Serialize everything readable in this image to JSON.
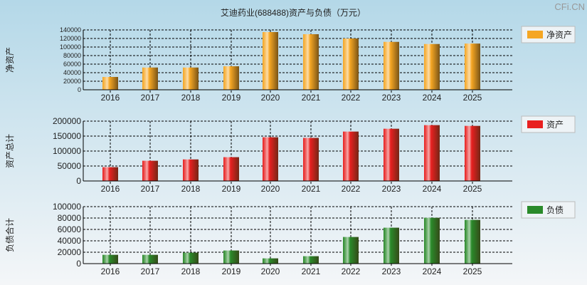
{
  "title": "艾迪药业(688488)资产与负债（万元）",
  "watermark": "CFi.CN",
  "chart_data": [
    {
      "type": "bar",
      "ylabel": "净资产",
      "legend": "净资产",
      "color": "#f5a623",
      "categories": [
        "2016",
        "2017",
        "2018",
        "2019",
        "2020",
        "2021",
        "2022",
        "2023",
        "2024",
        "2025"
      ],
      "values": [
        30000,
        52000,
        52000,
        55000,
        135000,
        130000,
        120000,
        112000,
        107000,
        108000
      ],
      "ylim": [
        0,
        140000
      ],
      "yticks": [
        0,
        20000,
        40000,
        60000,
        80000,
        100000,
        120000,
        140000
      ],
      "grid": true,
      "legend_position": "right"
    },
    {
      "type": "bar",
      "ylabel": "资产总计",
      "legend": "资产",
      "color": "#e82020",
      "categories": [
        "2016",
        "2017",
        "2018",
        "2019",
        "2020",
        "2021",
        "2022",
        "2023",
        "2024",
        "2025"
      ],
      "values": [
        46000,
        67500,
        72000,
        79500,
        146000,
        144000,
        165000,
        174500,
        186500,
        184000
      ],
      "ylim": [
        0,
        200000
      ],
      "yticks": [
        0,
        50000,
        100000,
        150000,
        200000
      ],
      "grid": true,
      "legend_position": "right"
    },
    {
      "type": "bar",
      "ylabel": "负债合计",
      "legend": "负债",
      "color": "#2a8a2a",
      "categories": [
        "2016",
        "2017",
        "2018",
        "2019",
        "2020",
        "2021",
        "2022",
        "2023",
        "2024",
        "2025"
      ],
      "values": [
        15400,
        15400,
        19200,
        23000,
        9200,
        13000,
        46700,
        63000,
        80400,
        76700
      ],
      "ylim": [
        0,
        100000
      ],
      "yticks": [
        0,
        20000,
        40000,
        60000,
        80000,
        100000
      ],
      "grid": true,
      "legend_position": "right"
    }
  ]
}
